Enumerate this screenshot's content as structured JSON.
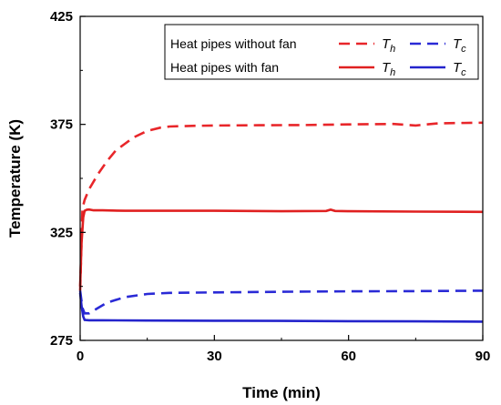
{
  "chart_data": {
    "type": "line",
    "xlabel": "Time (min)",
    "ylabel": "Temperature (K)",
    "xlim": [
      0,
      90
    ],
    "ylim": [
      275,
      425
    ],
    "xticks": [
      0,
      30,
      60,
      90
    ],
    "yticks": [
      275,
      325,
      375,
      425
    ],
    "grid": false,
    "legend_position": "top-right",
    "legend": {
      "rows": [
        {
          "label": "Heat pipes without fan",
          "style": "dashed"
        },
        {
          "label": "Heat pipes with fan",
          "style": "solid"
        }
      ],
      "th_symbol": "T",
      "th_sub": "h",
      "tc_symbol": "T",
      "tc_sub": "c"
    },
    "series": [
      {
        "group": "Heat pipes without fan",
        "symbol": "Th",
        "style": "dashed",
        "color": "#e8262a",
        "x": [
          0,
          0.5,
          1,
          2,
          4,
          6,
          8,
          10,
          12,
          15,
          18,
          20,
          25,
          30,
          40,
          50,
          60,
          70,
          75,
          80,
          90
        ],
        "y": [
          298,
          336,
          340,
          345,
          352,
          358,
          363,
          366,
          369,
          372,
          373.5,
          374,
          374.3,
          374.5,
          374.6,
          374.7,
          375,
          375.2,
          374.5,
          375.5,
          375.8
        ]
      },
      {
        "group": "Heat pipes without fan",
        "symbol": "Tc",
        "style": "dashed",
        "color": "#2a2ad6",
        "x": [
          0,
          0.5,
          1,
          2,
          4,
          6,
          10,
          15,
          20,
          30,
          45,
          60,
          75,
          90
        ],
        "y": [
          298,
          290,
          287.5,
          287.5,
          290,
          292.5,
          295,
          296.5,
          297,
          297.2,
          297.5,
          297.7,
          297.8,
          298
        ]
      },
      {
        "group": "Heat pipes with fan",
        "symbol": "Th",
        "style": "solid",
        "color": "#e02020",
        "x": [
          0,
          0.3,
          0.7,
          1,
          1.5,
          2,
          3,
          5,
          10,
          20,
          30,
          45,
          55,
          56,
          57,
          60,
          75,
          90
        ],
        "y": [
          300,
          320,
          332,
          335,
          335.5,
          335.6,
          335.2,
          335.2,
          335,
          335,
          335,
          334.8,
          334.9,
          335.5,
          334.9,
          334.8,
          334.6,
          334.5
        ]
      },
      {
        "group": "Heat pipes with fan",
        "symbol": "Tc",
        "style": "solid",
        "color": "#2424cc",
        "x": [
          0,
          0.3,
          0.7,
          1,
          2,
          5,
          15,
          30,
          45,
          60,
          75,
          90
        ],
        "y": [
          297,
          291,
          286,
          284.5,
          284.3,
          284.3,
          284.2,
          284.1,
          284,
          283.9,
          283.8,
          283.7
        ]
      }
    ]
  }
}
